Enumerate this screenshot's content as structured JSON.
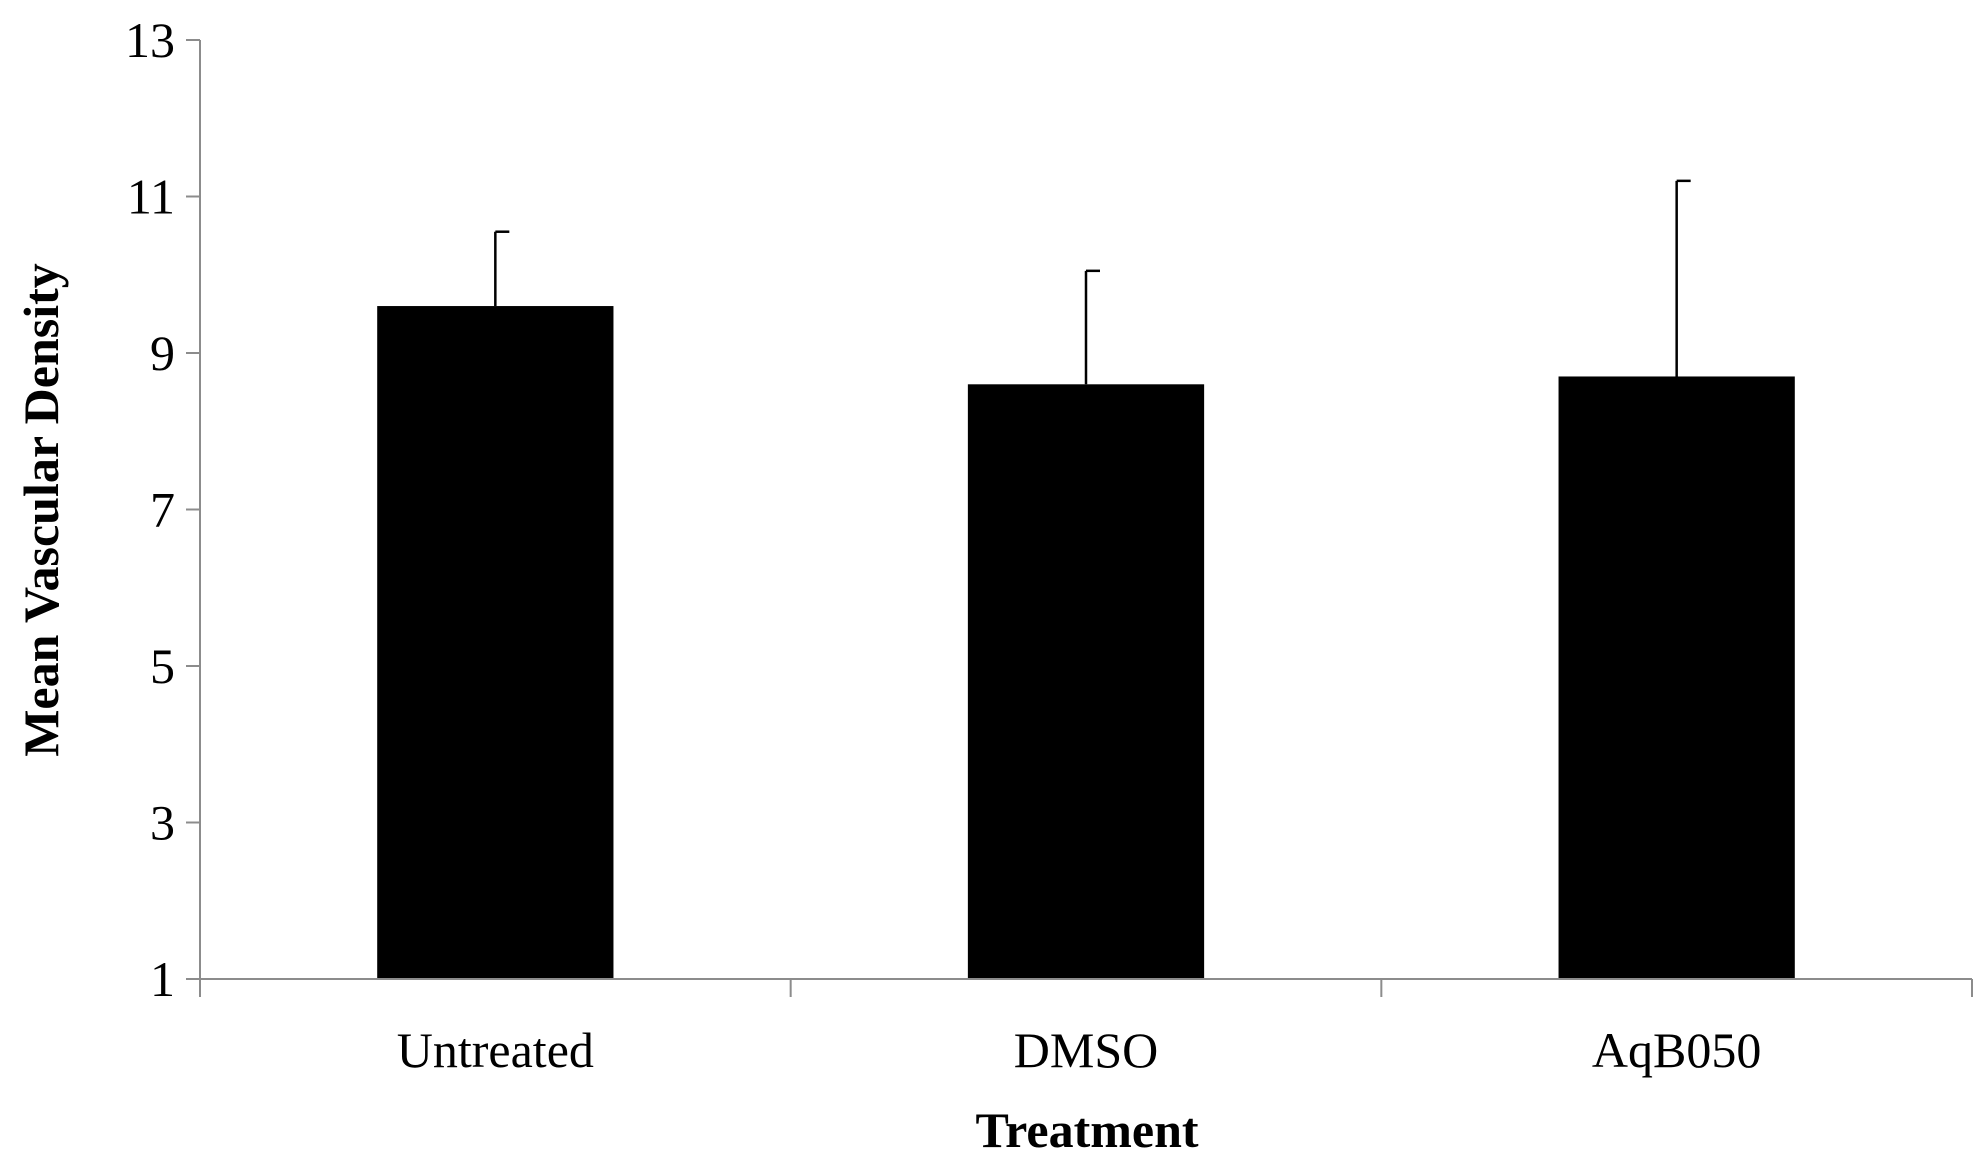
{
  "chart_data": {
    "type": "bar",
    "title": "",
    "xlabel": "Treatment",
    "ylabel": "Mean Vascular Density",
    "categories": [
      "Untreated",
      "DMSO",
      "AqB050"
    ],
    "series": [
      {
        "values": [
          9.6,
          8.6,
          8.7
        ],
        "error_upper": [
          0.95,
          1.45,
          2.5
        ]
      }
    ],
    "ylim": [
      1,
      13
    ],
    "yticks": [
      1,
      3,
      5,
      7,
      9,
      11,
      13
    ],
    "grid": false,
    "legend": "none",
    "colors": {
      "bar": "#000000",
      "axis": "#8c8c8c",
      "error_bar": "#000000"
    }
  }
}
